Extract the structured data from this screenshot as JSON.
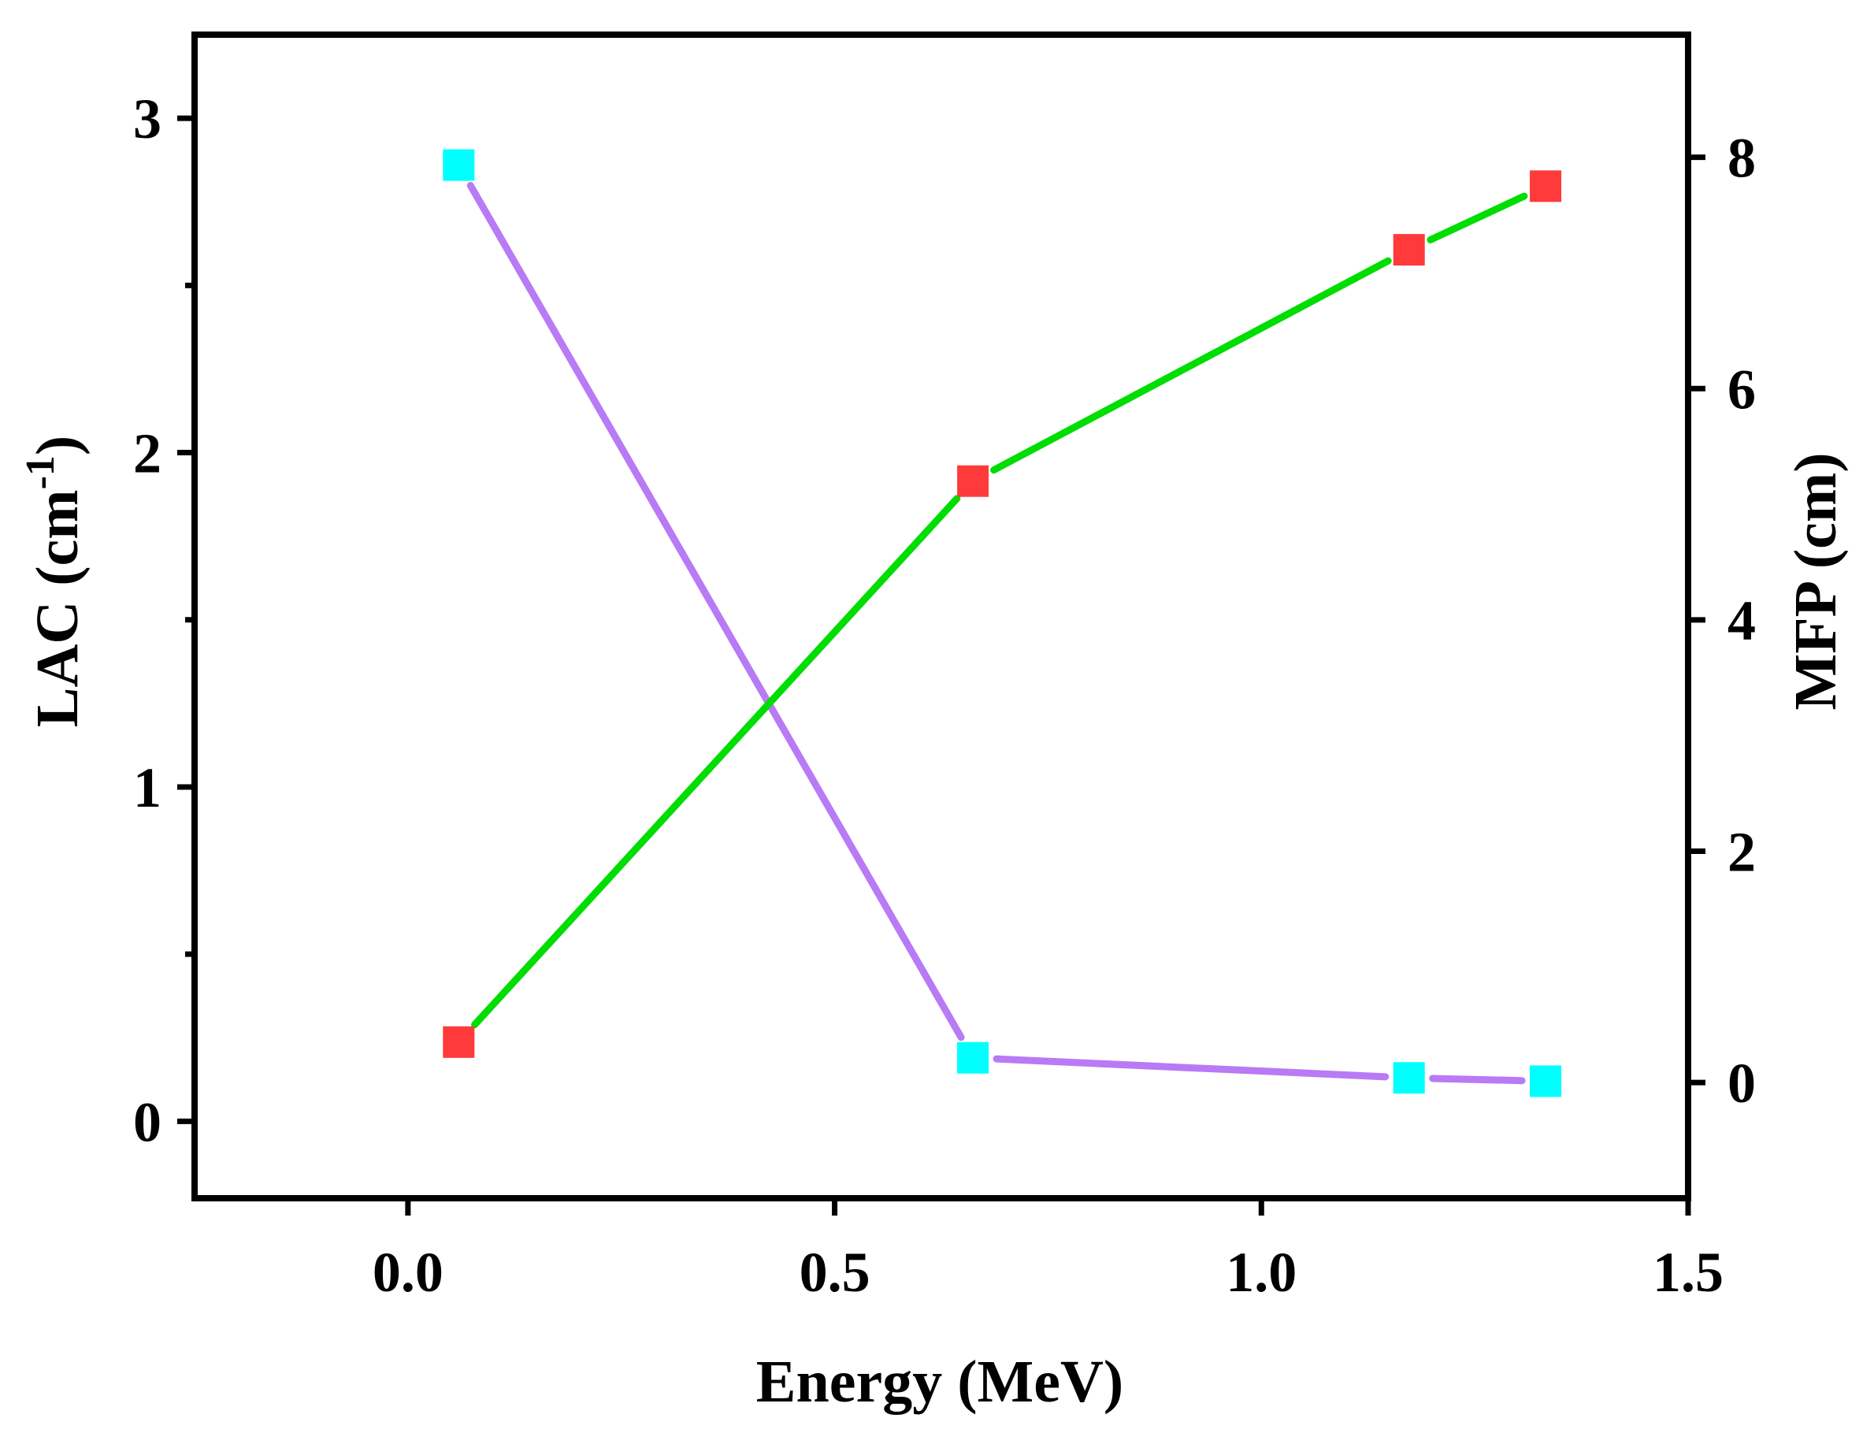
{
  "chart_data": {
    "type": "line",
    "xlabel": "Energy (MeV)",
    "ylabel_left_main": "LAC (cm",
    "ylabel_left_sup": "-1",
    "ylabel_left_close": ")",
    "ylabel_right": "MFP (cm)",
    "xlim": [
      -0.25,
      1.5
    ],
    "ylim_left": [
      -0.23,
      3.25
    ],
    "ylim_right": [
      -1.0,
      9.06
    ],
    "x_ticks": [
      "0.0",
      "0.5",
      "1.0",
      "1.5"
    ],
    "x_tick_values": [
      0.0,
      0.5,
      1.0,
      1.5
    ],
    "y_left_ticks": [
      "0",
      "1",
      "2",
      "3"
    ],
    "y_left_tick_values": [
      0,
      1,
      2,
      3
    ],
    "y_left_minor_values": [
      0.5,
      1.5,
      2.5
    ],
    "y_right_ticks": [
      "0",
      "2",
      "4",
      "6",
      "8"
    ],
    "y_right_tick_values": [
      0,
      2,
      4,
      6,
      8
    ],
    "grid": false,
    "series": [
      {
        "axis": "left",
        "x": [
          0.0595,
          0.662,
          1.173,
          1.333
        ],
        "y": [
          2.86,
          0.19,
          0.13,
          0.12
        ],
        "line_color": "#b87af5",
        "marker_color": "#00ffff"
      },
      {
        "axis": "right",
        "x": [
          0.0595,
          0.662,
          1.173,
          1.333
        ],
        "y": [
          0.35,
          5.2,
          7.2,
          7.75
        ],
        "line_color": "#00dd00",
        "marker_color": "#ff3a3a"
      }
    ]
  }
}
